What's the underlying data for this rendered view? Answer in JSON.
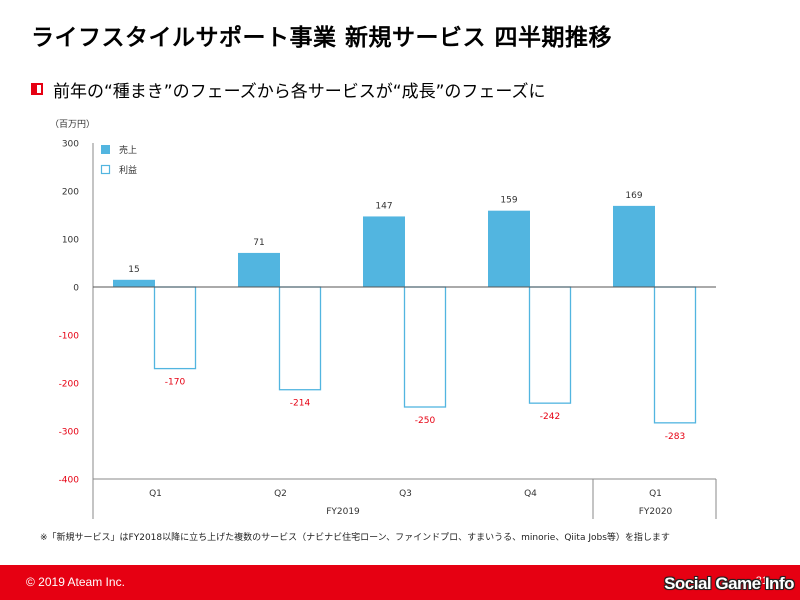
{
  "header": {
    "title": "ライフスタイルサポート事業 新規サービス 四半期推移",
    "subtitle": "前年の“種まき”のフェーズから各サービスが“成長”のフェーズに"
  },
  "chart_data": {
    "type": "bar",
    "unit_label": "（百万円）",
    "categories": [
      "Q1",
      "Q2",
      "Q3",
      "Q4",
      "Q1"
    ],
    "groups": [
      {
        "label": "FY2019",
        "categories": [
          "Q1",
          "Q2",
          "Q3",
          "Q4"
        ]
      },
      {
        "label": "FY2020",
        "categories": [
          "Q1"
        ]
      }
    ],
    "series": [
      {
        "name": "売上",
        "values": [
          15,
          71,
          147,
          159,
          169
        ],
        "style": "filled"
      },
      {
        "name": "利益",
        "values": [
          -170,
          -214,
          -250,
          -242,
          -283
        ],
        "style": "outline"
      }
    ],
    "ylim": [
      -400,
      300
    ],
    "yticks": [
      300,
      200,
      100,
      0,
      -100,
      -200,
      -300,
      -400
    ],
    "legend_position": "top-left",
    "grid": false
  },
  "footnote": "※「新規サービス」はFY2018以降に立ち上げた複数のサービス（ナビナビ住宅ローン、ファインドプロ、すまいうる、minorie、Qiita Jobs等）を指します",
  "footer": {
    "copyright": "© 2019 Ateam Inc.",
    "page_number": "31"
  },
  "watermark": "Social Game Info",
  "colors": {
    "brand_red": "#e60012",
    "bar_blue": "#52b5e0",
    "negative_text": "#e60012",
    "axis": "#888888"
  }
}
